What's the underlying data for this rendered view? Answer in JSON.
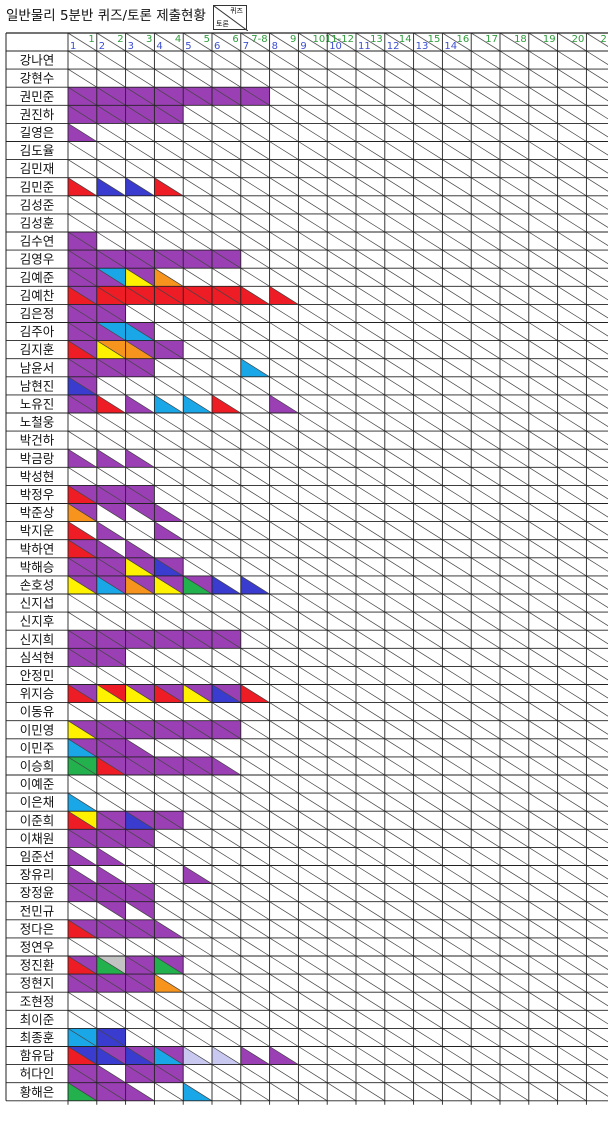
{
  "sheet": {
    "title": "일반물리 5분반 퀴즈/토론 제출현황",
    "legend": {
      "quiz_label": "퀴즈",
      "discussion_label": "토론"
    }
  },
  "columns": [
    {
      "quiz": "1",
      "discussion": "1"
    },
    {
      "quiz": "2",
      "discussion": "2"
    },
    {
      "quiz": "3",
      "discussion": "3"
    },
    {
      "quiz": "4",
      "discussion": "4"
    },
    {
      "quiz": "5",
      "discussion": "5"
    },
    {
      "quiz": "6",
      "discussion": "6"
    },
    {
      "quiz": "7-8",
      "discussion": "7"
    },
    {
      "quiz": "9",
      "discussion": "8"
    },
    {
      "quiz": "10",
      "discussion": "9"
    },
    {
      "quiz": "11-12",
      "discussion": "10"
    },
    {
      "quiz": "13",
      "discussion": "11"
    },
    {
      "quiz": "14",
      "discussion": "12"
    },
    {
      "quiz": "15",
      "discussion": "13"
    },
    {
      "quiz": "16",
      "discussion": "14"
    },
    {
      "quiz": "17",
      "discussion": ""
    },
    {
      "quiz": "18",
      "discussion": ""
    },
    {
      "quiz": "19",
      "discussion": ""
    },
    {
      "quiz": "20",
      "discussion": ""
    },
    {
      "quiz": "21",
      "discussion": ""
    }
  ],
  "status_colors": {
    "P": "#9b3fb5",
    "R": "#ee1c24",
    "B": "#3a3bcf",
    "Y": "#fff200",
    "C": "#1aa7e8",
    "O": "#f7941d",
    "G": "#22b14c",
    "L": "#c8c8f0",
    "S": "#c3c3c3"
  },
  "students": [
    {
      "name": "강나연",
      "d": "",
      "q": ""
    },
    {
      "name": "강현수",
      "d": "",
      "q": ""
    },
    {
      "name": "권민준",
      "d": "PPPPPPP",
      "q": "PPPPPPP"
    },
    {
      "name": "권진하",
      "d": "PPPP",
      "q": "PPPP"
    },
    {
      "name": "길영은",
      "d": "P",
      "q": ""
    },
    {
      "name": "김도율",
      "d": "",
      "q": ""
    },
    {
      "name": "김민재",
      "d": "",
      "q": ""
    },
    {
      "name": "김민준",
      "d": "RBBR",
      "q": ""
    },
    {
      "name": "김성준",
      "d": "",
      "q": ""
    },
    {
      "name": "김성훈",
      "d": "",
      "q": ""
    },
    {
      "name": "김수연",
      "d": "P",
      "q": "P"
    },
    {
      "name": "김영우",
      "d": "PPPPPP",
      "q": "PPPPPP"
    },
    {
      "name": "김예준",
      "d": "PPYO",
      "q": "PCP"
    },
    {
      "name": "김예찬",
      "d": "RRRRRRRR",
      "q": "PRRRRR"
    },
    {
      "name": "김은정",
      "d": "PP",
      "q": "PP"
    },
    {
      "name": "김주아",
      "d": "PPC",
      "q": "PCP"
    },
    {
      "name": "김지훈",
      "d": "RYOP",
      "q": "POPP"
    },
    {
      "name": "남윤서",
      "d": "PPP...C",
      "q": "PPP"
    },
    {
      "name": "남현진",
      "d": "B",
      "q": "P"
    },
    {
      "name": "노유진",
      "d": "PRPCCR.P",
      "q": "P"
    },
    {
      "name": "노철웅",
      "d": "",
      "q": ""
    },
    {
      "name": "박건하",
      "d": "",
      "q": ""
    },
    {
      "name": "박금랑",
      "d": "PPP",
      "q": ""
    },
    {
      "name": "박성현",
      "d": "",
      "q": ""
    },
    {
      "name": "박정우",
      "d": "RPP",
      "q": "PPP"
    },
    {
      "name": "박준상",
      "d": "O..P",
      "q": "PPP"
    },
    {
      "name": "박지운",
      "d": "RP.P",
      "q": ""
    },
    {
      "name": "박하연",
      "d": "RPP",
      "q": "P"
    },
    {
      "name": "박해승",
      "d": "PPYB",
      "q": "PPPP"
    },
    {
      "name": "손호성",
      "d": "YCOYGBB",
      "q": "PPPPP"
    },
    {
      "name": "신지섭",
      "d": "",
      "q": ""
    },
    {
      "name": "신지후",
      "d": "",
      "q": ""
    },
    {
      "name": "신지희",
      "d": "PPPPPP",
      "q": "PPPPPP"
    },
    {
      "name": "심석현",
      "d": "PP",
      "q": "PP"
    },
    {
      "name": "안정민",
      "d": "",
      "q": ""
    },
    {
      "name": "위지승",
      "d": "RYYRYBR",
      "q": "PRPPPP"
    },
    {
      "name": "이동유",
      "d": "",
      "q": ""
    },
    {
      "name": "이민영",
      "d": "YPPPPP",
      "q": "PPPPPP"
    },
    {
      "name": "이민주",
      "d": "CPP",
      "q": "PP"
    },
    {
      "name": "이승희",
      "d": "GRPPPP",
      "q": "GPPPP"
    },
    {
      "name": "이예준",
      "d": "",
      "q": ""
    },
    {
      "name": "이은채",
      "d": "C",
      "q": ""
    },
    {
      "name": "이준희",
      "d": "RPBP",
      "q": "YPPP"
    },
    {
      "name": "이채원",
      "d": "PPP",
      "q": "PPP"
    },
    {
      "name": "임준선",
      "d": "PP",
      "q": ""
    },
    {
      "name": "장유리",
      "d": "PP..P",
      "q": ""
    },
    {
      "name": "장정윤",
      "d": "PPP",
      "q": "PPP"
    },
    {
      "name": "전민규",
      "d": "",
      "q": ".PP"
    },
    {
      "name": "정다은",
      "d": "RPPP",
      "q": "PPP"
    },
    {
      "name": "정연우",
      "d": "",
      "q": ""
    },
    {
      "name": "정진환",
      "d": "RGPG",
      "q": "PSPP"
    },
    {
      "name": "정현지",
      "d": "PPPO",
      "q": "PPP"
    },
    {
      "name": "조현정",
      "d": "",
      "q": ""
    },
    {
      "name": "최이준",
      "d": "",
      "q": ""
    },
    {
      "name": "최종훈",
      "d": "CB",
      "q": "CB"
    },
    {
      "name": "함유담",
      "d": "RBBCLLPP",
      "q": "BPPP"
    },
    {
      "name": "허다인",
      "d": "PPPP",
      "q": "P.PP"
    },
    {
      "name": "황해은",
      "d": "GPP.C",
      "q": "PP"
    }
  ]
}
